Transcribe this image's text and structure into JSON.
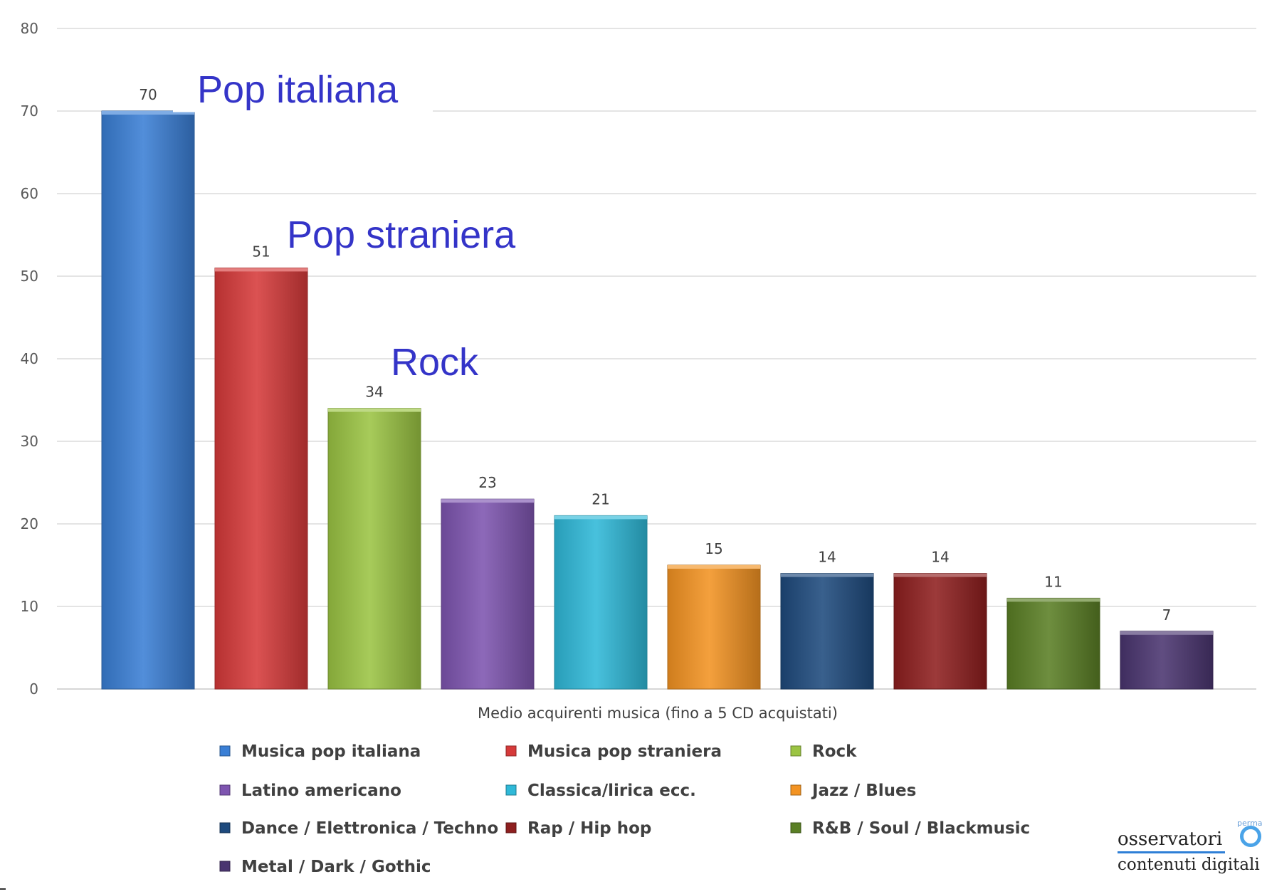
{
  "chart_data": {
    "type": "bar",
    "title": "",
    "xlabel": "Medio acquirenti musica (fino a 5 CD acquistati)",
    "ylabel": "",
    "ylim": [
      0,
      80
    ],
    "yticks": [
      0,
      10,
      20,
      30,
      40,
      50,
      60,
      70,
      80
    ],
    "grid": true,
    "legend_position": "bottom",
    "series": [
      {
        "name": "Musica pop italiana",
        "values": [
          70
        ],
        "color": "#3a7fd5"
      },
      {
        "name": "Musica pop straniera",
        "values": [
          51
        ],
        "color": "#d63a3a"
      },
      {
        "name": "Rock",
        "values": [
          34
        ],
        "color": "#9bc443"
      },
      {
        "name": "Latino americano",
        "values": [
          23
        ],
        "color": "#7e55b0"
      },
      {
        "name": "Classica/lirica ecc.",
        "values": [
          21
        ],
        "color": "#2fb9d8"
      },
      {
        "name": "Jazz / Blues",
        "values": [
          15
        ],
        "color": "#f39322"
      },
      {
        "name": "Dance / Elettronica / Techno",
        "values": [
          14
        ],
        "color": "#1e4a7d"
      },
      {
        "name": "Rap / Hip hop",
        "values": [
          14
        ],
        "color": "#8e1f1f"
      },
      {
        "name": "R&B / Soul / Blackmusic",
        "values": [
          11
        ],
        "color": "#5a7f25"
      },
      {
        "name": "Metal / Dark / Gothic",
        "values": [
          7
        ],
        "color": "#4a3570"
      }
    ],
    "data_labels": [
      "70",
      "51",
      "34",
      "23",
      "21",
      "15",
      "14",
      "14",
      "11",
      "7"
    ],
    "annotations": [
      {
        "text": "Pop italiana",
        "series": 0
      },
      {
        "text": "Pop straniera",
        "series": 1
      },
      {
        "text": "Rock",
        "series": 2
      }
    ]
  },
  "logo": {
    "line1": "osservatori",
    "line2": "contenuti digitali",
    "mark": "perma"
  }
}
